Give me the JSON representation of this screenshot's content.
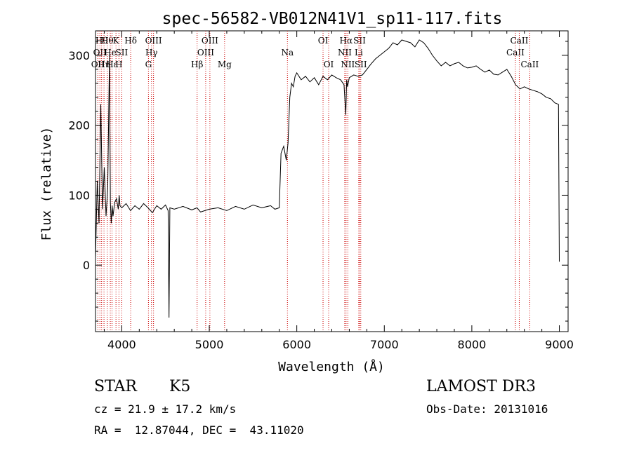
{
  "chart_data": {
    "type": "line",
    "title": "spec-56582-VB012N41V1_sp11-117.fits",
    "xlabel": "Wavelength (Å)",
    "ylabel": "Flux (relative)",
    "xlim": [
      3700,
      9100
    ],
    "ylim": [
      -95,
      335
    ],
    "xticks": [
      4000,
      5000,
      6000,
      7000,
      8000,
      9000
    ],
    "xtick_labels": [
      "4000",
      "5000",
      "6000",
      "7000",
      "8000",
      "9000"
    ],
    "yticks": [
      0,
      100,
      200,
      300
    ],
    "ytick_labels": [
      "0",
      "100",
      "200",
      "300"
    ],
    "grid": false,
    "line_color": "#000000",
    "marker_color": "#cc0000",
    "series": [
      {
        "x": [
          3700,
          3720,
          3740,
          3760,
          3780,
          3800,
          3820,
          3840,
          3860,
          3870,
          3880,
          3890,
          3900,
          3920,
          3940,
          3960,
          3970,
          3980,
          4000,
          4050,
          4100,
          4150,
          4200,
          4250,
          4300,
          4350,
          4400,
          4450,
          4500,
          4530,
          4540,
          4550,
          4600,
          4700,
          4800,
          4860,
          4900,
          5000,
          5100,
          5200,
          5300,
          5400,
          5500,
          5600,
          5700,
          5750,
          5800,
          5820,
          5850,
          5880,
          5900,
          5920,
          5940,
          5960,
          5980,
          6000,
          6050,
          6100,
          6150,
          6200,
          6250,
          6300,
          6350,
          6400,
          6450,
          6500,
          6540,
          6560,
          6570,
          6580,
          6600,
          6650,
          6700,
          6750,
          6800,
          6850,
          6900,
          6950,
          7000,
          7050,
          7100,
          7150,
          7200,
          7250,
          7300,
          7350,
          7400,
          7450,
          7500,
          7550,
          7600,
          7650,
          7700,
          7750,
          7800,
          7850,
          7900,
          7950,
          8000,
          8050,
          8100,
          8150,
          8200,
          8250,
          8300,
          8350,
          8400,
          8450,
          8500,
          8550,
          8600,
          8650,
          8700,
          8750,
          8800,
          8850,
          8900,
          8950,
          8990,
          9000
        ],
        "y": [
          10,
          120,
          60,
          230,
          80,
          140,
          70,
          110,
          300,
          90,
          60,
          85,
          70,
          90,
          95,
          80,
          100,
          85,
          82,
          88,
          78,
          85,
          80,
          88,
          82,
          75,
          85,
          80,
          86,
          78,
          -75,
          82,
          80,
          84,
          79,
          82,
          76,
          80,
          82,
          78,
          84,
          80,
          86,
          82,
          85,
          80,
          82,
          160,
          170,
          150,
          175,
          240,
          260,
          255,
          270,
          275,
          265,
          270,
          262,
          268,
          258,
          270,
          265,
          272,
          268,
          265,
          258,
          215,
          265,
          255,
          268,
          272,
          270,
          272,
          280,
          288,
          295,
          300,
          305,
          310,
          318,
          315,
          322,
          320,
          318,
          312,
          322,
          318,
          310,
          300,
          292,
          285,
          290,
          285,
          288,
          290,
          285,
          282,
          283,
          285,
          280,
          276,
          279,
          273,
          272,
          276,
          280,
          270,
          258,
          252,
          255,
          252,
          250,
          248,
          245,
          240,
          238,
          232,
          230,
          5
        ]
      }
    ],
    "line_markers": [
      {
        "x": 3727,
        "labels": [
          "OII"
        ],
        "rows": [
          3
        ]
      },
      {
        "x": 3750,
        "labels": [
          "OII"
        ],
        "rows": [
          2
        ]
      },
      {
        "x": 3770,
        "labels": [
          "Hθ"
        ],
        "rows": [
          1
        ]
      },
      {
        "x": 3797,
        "labels": [
          "Hη"
        ],
        "rows": [
          3
        ]
      },
      {
        "x": 3835,
        "labels": [
          "Hθ"
        ],
        "rows": [
          1
        ]
      },
      {
        "x": 3869,
        "labels": [
          "He"
        ],
        "rows": [
          2
        ]
      },
      {
        "x": 3889,
        "labels": [
          "Hε"
        ],
        "rows": [
          3
        ]
      },
      {
        "x": 3934,
        "labels": [
          "K"
        ],
        "rows": [
          1
        ]
      },
      {
        "x": 3968,
        "labels": [
          "H"
        ],
        "rows": [
          3
        ]
      },
      {
        "x": 4000,
        "labels": [
          "SII"
        ],
        "rows": [
          2
        ]
      },
      {
        "x": 4102,
        "labels": [
          "Hδ"
        ],
        "rows": [
          1
        ]
      },
      {
        "x": 4305,
        "labels": [
          "G"
        ],
        "rows": [
          3
        ]
      },
      {
        "x": 4340,
        "labels": [
          "Hγ"
        ],
        "rows": [
          2
        ]
      },
      {
        "x": 4363,
        "labels": [
          "OIII"
        ],
        "rows": [
          1
        ]
      },
      {
        "x": 4861,
        "labels": [
          "Hβ"
        ],
        "rows": [
          3
        ]
      },
      {
        "x": 4959,
        "labels": [
          "OIII"
        ],
        "rows": [
          2
        ]
      },
      {
        "x": 5007,
        "labels": [
          "OIII"
        ],
        "rows": [
          1
        ]
      },
      {
        "x": 5175,
        "labels": [
          "Mg"
        ],
        "rows": [
          3
        ]
      },
      {
        "x": 5893,
        "labels": [
          "Na"
        ],
        "rows": [
          2
        ]
      },
      {
        "x": 6300,
        "labels": [
          "OI"
        ],
        "rows": [
          1
        ]
      },
      {
        "x": 6364,
        "labels": [
          "OI"
        ],
        "rows": [
          3
        ]
      },
      {
        "x": 6548,
        "labels": [
          "NII"
        ],
        "rows": [
          2
        ]
      },
      {
        "x": 6563,
        "labels": [
          "Hα"
        ],
        "rows": [
          1
        ]
      },
      {
        "x": 6583,
        "labels": [
          "NII"
        ],
        "rows": [
          3
        ]
      },
      {
        "x": 6708,
        "labels": [
          "Li"
        ],
        "rows": [
          2
        ]
      },
      {
        "x": 6717,
        "labels": [
          "SII"
        ],
        "rows": [
          1
        ]
      },
      {
        "x": 6731,
        "labels": [
          "SII"
        ],
        "rows": [
          3
        ]
      },
      {
        "x": 8498,
        "labels": [
          "CaII"
        ],
        "rows": [
          2
        ]
      },
      {
        "x": 8542,
        "labels": [
          "CaII"
        ],
        "rows": [
          1
        ]
      },
      {
        "x": 8662,
        "labels": [
          "CaII"
        ],
        "rows": [
          3
        ]
      }
    ]
  },
  "info": {
    "object_class": "STAR",
    "subclass": "K5",
    "survey": "LAMOST DR3",
    "cz": "cz = 21.9 ± 17.2 km/s",
    "obs_date": "Obs-Date: 20131016",
    "coords": "RA =  12.87044, DEC =  43.11020"
  }
}
